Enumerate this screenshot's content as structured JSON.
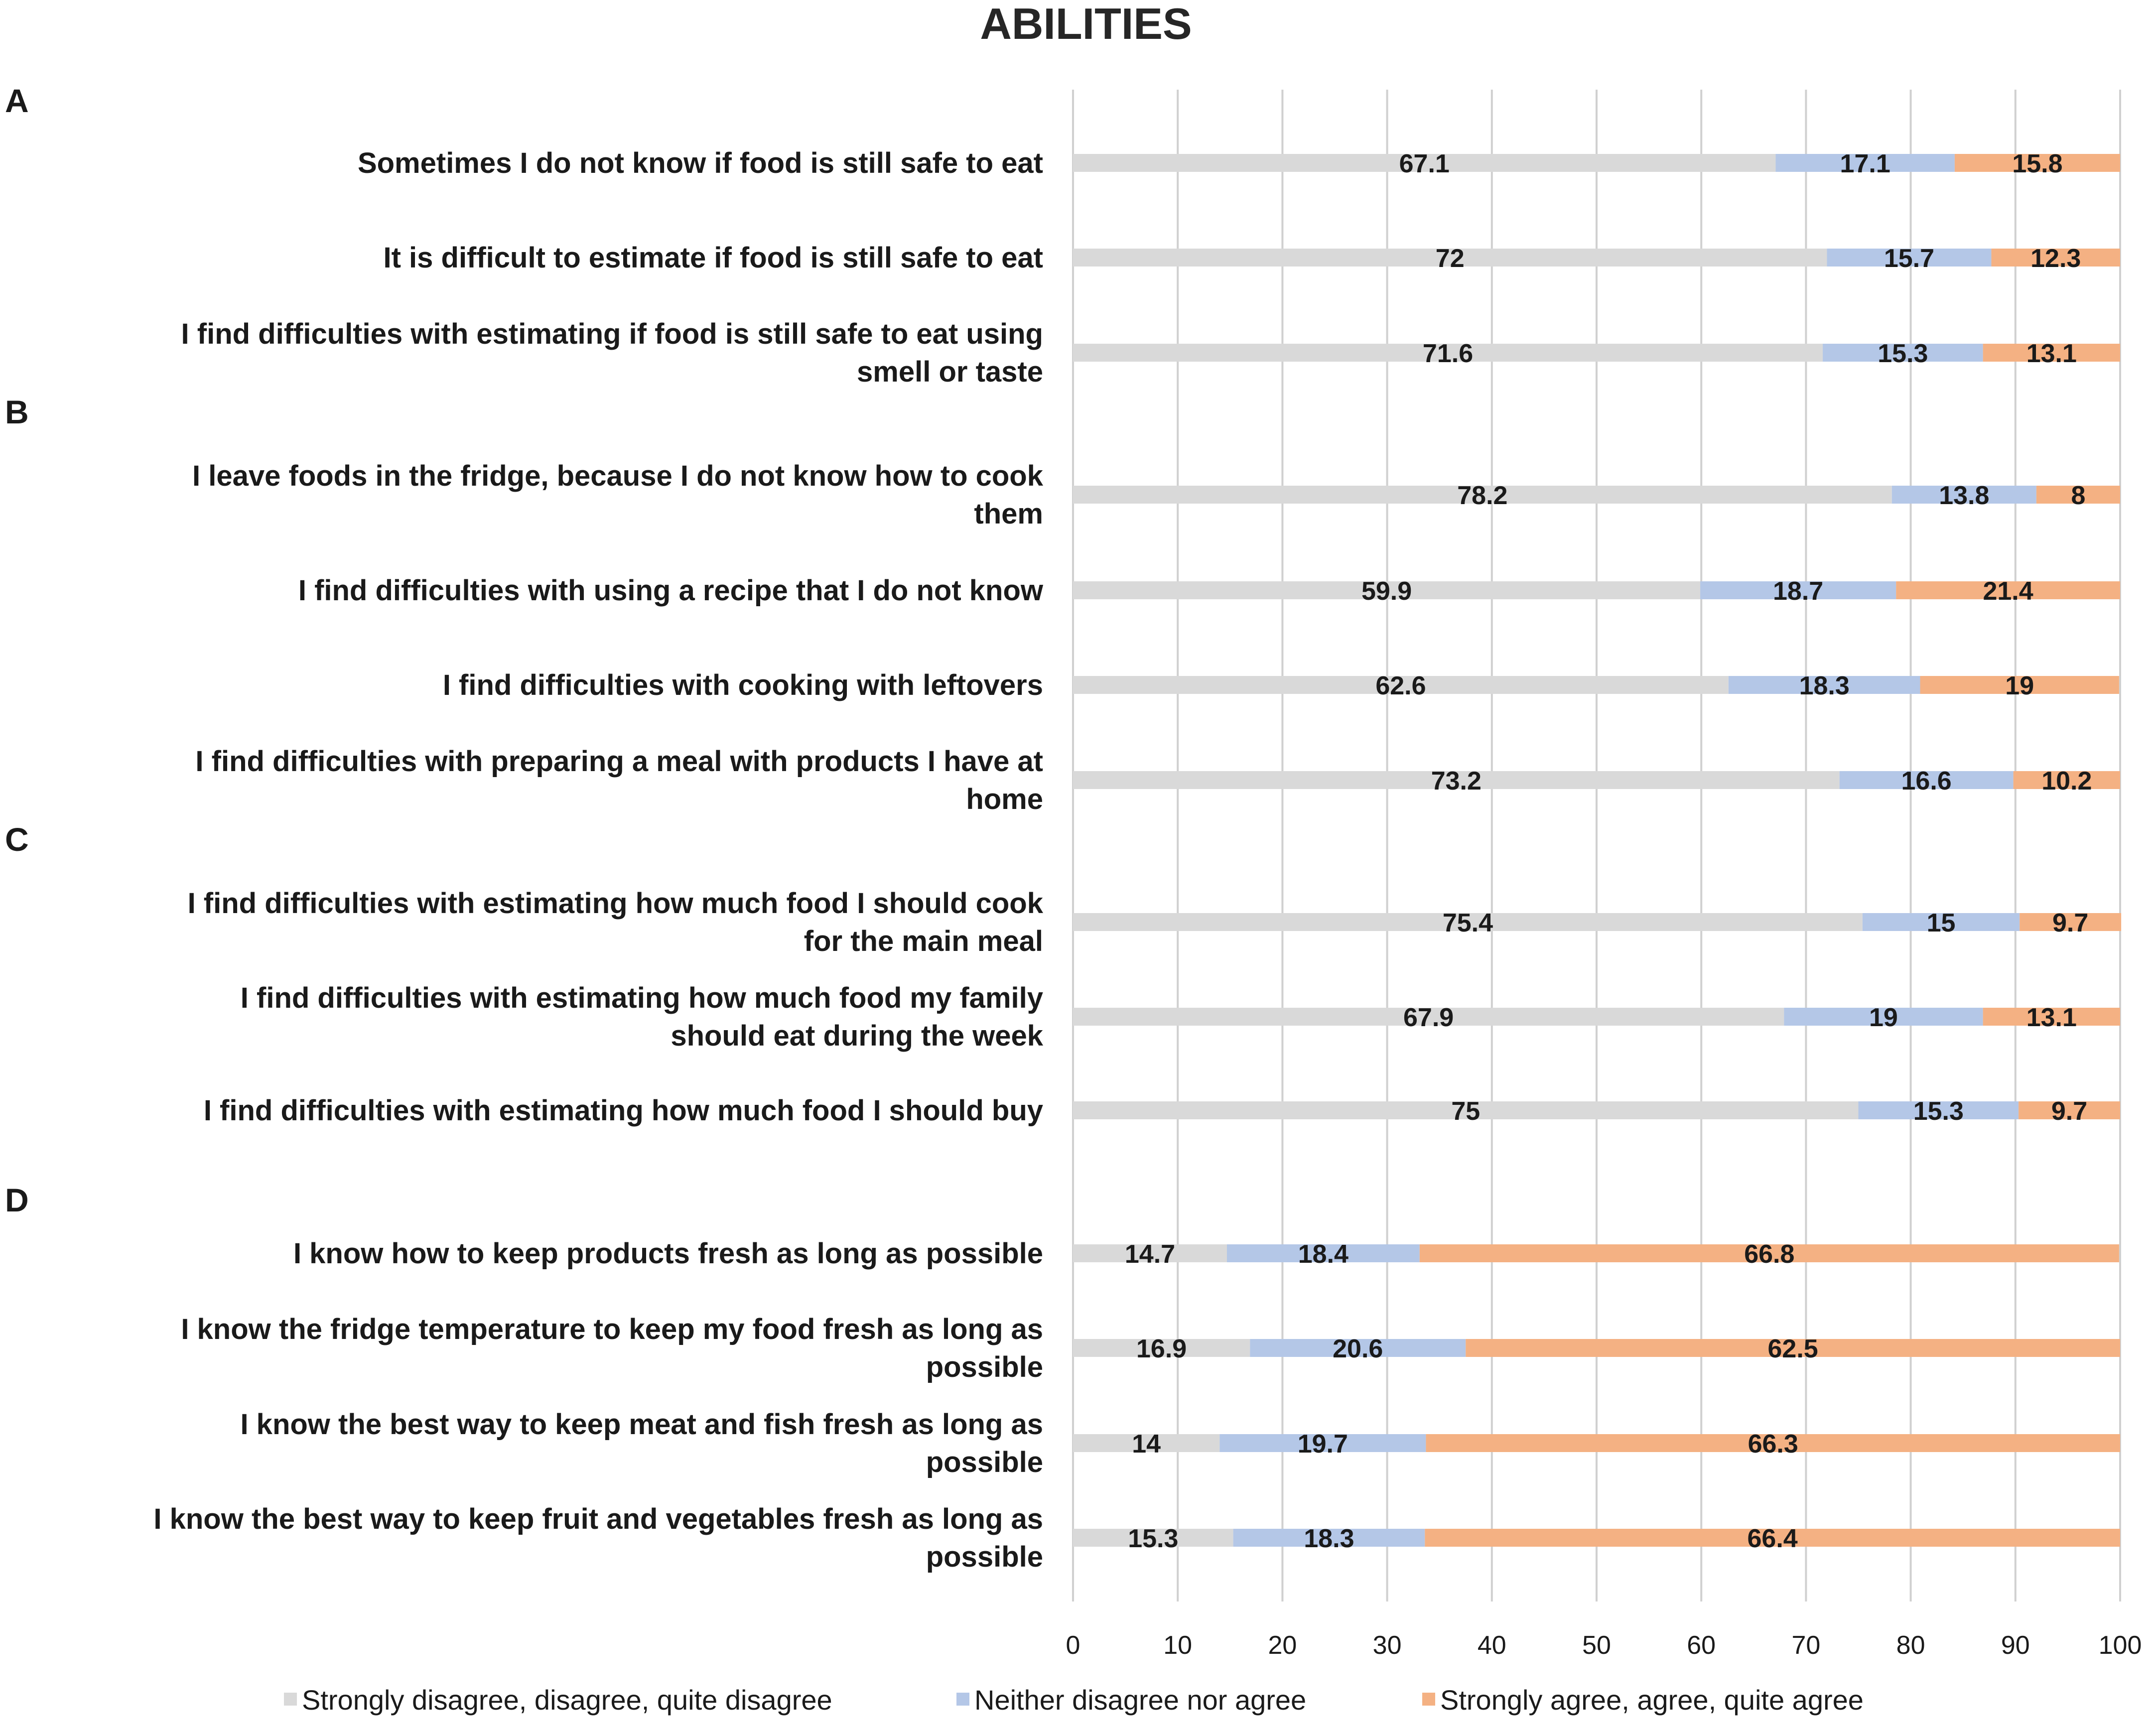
{
  "chart_data": {
    "type": "bar",
    "stacked": true,
    "orientation": "horizontal",
    "title": "ABILITIES",
    "xlim": [
      0,
      100
    ],
    "xticks": [
      "0",
      "10",
      "20",
      "30",
      "40",
      "50",
      "60",
      "70",
      "80",
      "90",
      "100"
    ],
    "grid": true,
    "legend_position": "bottom",
    "sections": [
      "A",
      "B",
      "C",
      "D"
    ],
    "groups": [
      {
        "section": "A",
        "items": [
          {
            "lines": [
              "Sometimes I do not know if food is still safe to eat"
            ],
            "values": [
              67.1,
              17.1,
              15.8
            ],
            "labels": [
              "67.1",
              "17.1",
              "15.8"
            ]
          },
          {
            "lines": [
              "It is difficult to estimate if food is still safe to eat"
            ],
            "values": [
              72,
              15.7,
              12.3
            ],
            "labels": [
              "72",
              "15.7",
              "12.3"
            ]
          },
          {
            "lines": [
              "I find difficulties with estimating if food is still safe to eat using",
              "smell or taste"
            ],
            "values": [
              71.6,
              15.3,
              13.1
            ],
            "labels": [
              "71.6",
              "15.3",
              "13.1"
            ]
          }
        ]
      },
      {
        "section": "B",
        "items": [
          {
            "lines": [
              "I leave foods in the fridge, because I do not know how to cook",
              "them"
            ],
            "values": [
              78.2,
              13.8,
              8
            ],
            "labels": [
              "78.2",
              "13.8",
              "8"
            ]
          },
          {
            "lines": [
              "I find difficulties with using a recipe that I do not know"
            ],
            "values": [
              59.9,
              18.7,
              21.4
            ],
            "labels": [
              "59.9",
              "18.7",
              "21.4"
            ]
          },
          {
            "lines": [
              "I find difficulties with cooking with leftovers"
            ],
            "values": [
              62.6,
              18.3,
              19
            ],
            "labels": [
              "62.6",
              "18.3",
              "19"
            ]
          },
          {
            "lines": [
              "I find difficulties with preparing a meal with products I have at",
              "home"
            ],
            "values": [
              73.2,
              16.6,
              10.2
            ],
            "labels": [
              "73.2",
              "16.6",
              "10.2"
            ]
          }
        ]
      },
      {
        "section": "C",
        "items": [
          {
            "lines": [
              "I find difficulties with estimating how much food I should cook",
              "for the main meal"
            ],
            "values": [
              75.4,
              15,
              9.7
            ],
            "labels": [
              "75.4",
              "15",
              "9.7"
            ]
          },
          {
            "lines": [
              "I find difficulties with estimating how much food my family",
              "should eat during the week"
            ],
            "values": [
              67.9,
              19,
              13.1
            ],
            "labels": [
              "67.9",
              "19",
              "13.1"
            ]
          },
          {
            "lines": [
              "I find difficulties with estimating how much food I should buy"
            ],
            "values": [
              75,
              15.3,
              9.7
            ],
            "labels": [
              "75",
              "15.3",
              "9.7"
            ]
          }
        ]
      },
      {
        "section": "D",
        "items": [
          {
            "lines": [
              "I know how to keep products fresh as long as possible"
            ],
            "values": [
              14.7,
              18.4,
              66.8
            ],
            "labels": [
              "14.7",
              "18.4",
              "66.8"
            ]
          },
          {
            "lines": [
              "I know the fridge temperature to keep my food fresh as long as",
              "possible"
            ],
            "values": [
              16.9,
              20.6,
              62.5
            ],
            "labels": [
              "16.9",
              "20.6",
              "62.5"
            ]
          },
          {
            "lines": [
              "I know the best way to keep meat and fish fresh as long as",
              "possible"
            ],
            "values": [
              14,
              19.7,
              66.3
            ],
            "labels": [
              "14",
              "19.7",
              "66.3"
            ]
          },
          {
            "lines": [
              "I know the best way to keep fruit and vegetables fresh as long as",
              "possible"
            ],
            "values": [
              15.3,
              18.3,
              66.4
            ],
            "labels": [
              "15.3",
              "18.3",
              "66.4"
            ]
          }
        ]
      }
    ],
    "series": [
      {
        "name": "Strongly disagree, disagree, quite disagree",
        "color": "#d9d9d9"
      },
      {
        "name": "Neither disagree nor agree",
        "color": "#b4c7e7"
      },
      {
        "name": "Strongly agree, agree, quite agree",
        "color": "#f4b183"
      }
    ]
  }
}
